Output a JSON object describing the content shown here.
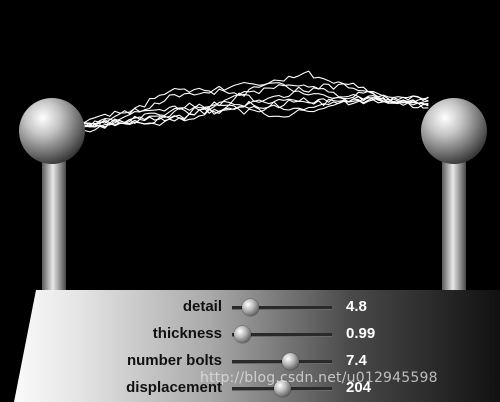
{
  "colors": {
    "background": "#000000",
    "bolt": "#ffffff",
    "value_text": "#ffffff",
    "label_text": "#111111"
  },
  "controls": [
    {
      "label": "detail",
      "value": "4.8",
      "fraction": 0.18
    },
    {
      "label": "thickness",
      "value": "0.99",
      "fraction": 0.1
    },
    {
      "label": "number bolts",
      "value": "7.4",
      "fraction": 0.58
    },
    {
      "label": "displacement",
      "value": "204",
      "fraction": 0.5
    }
  ],
  "watermark": "http://blog.csdn.net/u012945598"
}
